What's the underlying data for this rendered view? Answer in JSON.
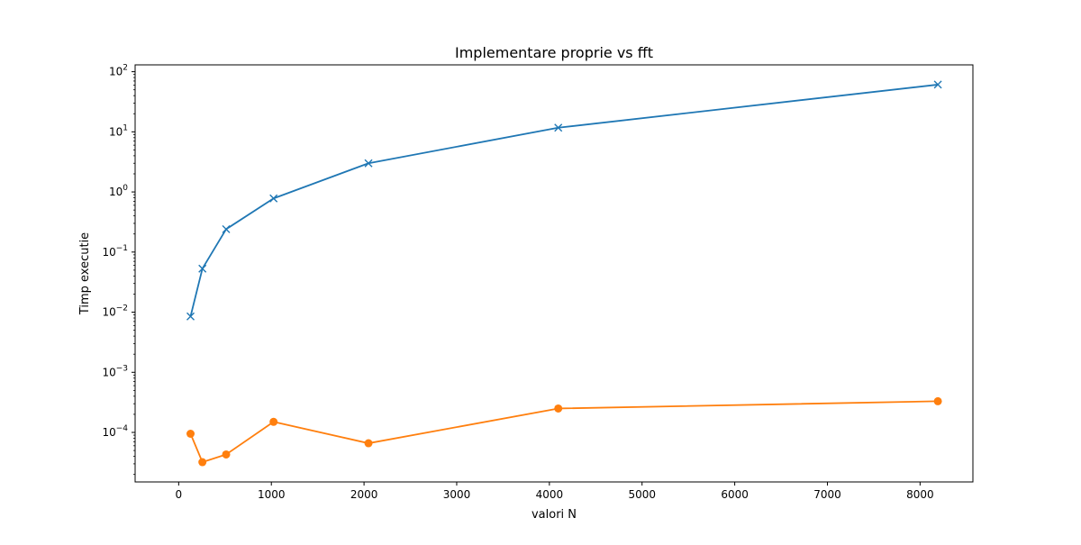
{
  "chart_data": {
    "type": "line",
    "title": "Implementare proprie vs fft",
    "xlabel": "valori N",
    "ylabel": "Timp executie",
    "yscale": "log",
    "grid": false,
    "xlim": [
      -470,
      8570
    ],
    "ylim": [
      1.5e-05,
      130
    ],
    "x": [
      128,
      256,
      512,
      1024,
      2048,
      4096,
      8192
    ],
    "xticks": [
      0,
      1000,
      2000,
      3000,
      4000,
      5000,
      6000,
      7000,
      8000
    ],
    "yticks": [
      {
        "value": 0.0001,
        "base": "10",
        "exp": "−4"
      },
      {
        "value": 0.001,
        "base": "10",
        "exp": "−3"
      },
      {
        "value": 0.01,
        "base": "10",
        "exp": "−2"
      },
      {
        "value": 0.1,
        "base": "10",
        "exp": "−1"
      },
      {
        "value": 1,
        "base": "10",
        "exp": "0"
      },
      {
        "value": 10,
        "base": "10",
        "exp": "1"
      },
      {
        "value": 100,
        "base": "10",
        "exp": "2"
      }
    ],
    "series": [
      {
        "color": "#1f77b4",
        "marker": "x",
        "values": [
          0.0085,
          0.053,
          0.24,
          0.78,
          3.0,
          11.7,
          61
        ]
      },
      {
        "color": "#ff7f0e",
        "marker": "o",
        "values": [
          9.5e-05,
          3.2e-05,
          4.3e-05,
          0.00015,
          6.6e-05,
          0.00025,
          0.00033
        ]
      }
    ]
  }
}
